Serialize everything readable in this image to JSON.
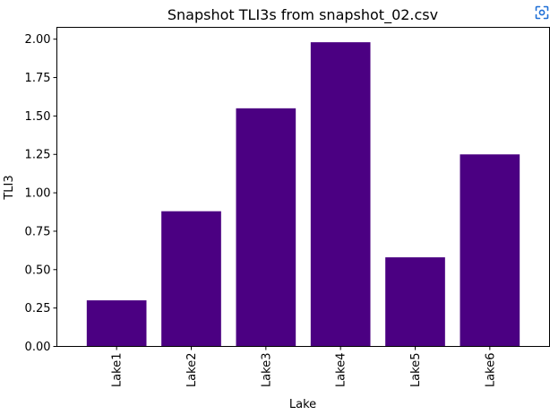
{
  "chart_data": {
    "type": "bar",
    "title": "Snapshot TLI3s from snapshot_02.csv",
    "xlabel": "Lake",
    "ylabel": "TLI3",
    "categories": [
      "Lake1",
      "Lake2",
      "Lake3",
      "Lake4",
      "Lake5",
      "Lake6"
    ],
    "values": [
      0.3,
      0.88,
      1.55,
      1.98,
      0.58,
      1.25
    ],
    "ylim": [
      0,
      2.077
    ],
    "yticks": [
      "0.00",
      "0.25",
      "0.50",
      "0.75",
      "1.00",
      "1.25",
      "1.50",
      "1.75",
      "2.00"
    ],
    "bar_color": "#4b0082",
    "grid": false,
    "legend": "none"
  },
  "toolbar": {
    "focus_icon": "focus-frame-icon",
    "accent_color": "#1f6fd6"
  }
}
